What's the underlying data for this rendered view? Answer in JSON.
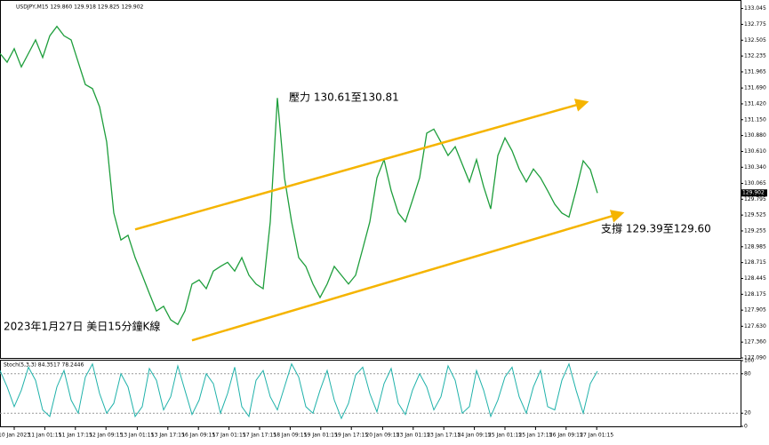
{
  "chart_data": [
    {
      "type": "line",
      "title": "USDJPY,M15  129.860 129.918 129.825 129.902",
      "color": "#1e9e3c",
      "xlim": [
        0,
        104
      ],
      "ylim": [
        127.09,
        133.19
      ],
      "values": [
        132.28,
        132.13,
        132.36,
        132.05,
        132.28,
        132.51,
        132.21,
        132.58,
        132.74,
        132.58,
        132.51,
        132.13,
        131.75,
        131.68,
        131.37,
        130.77,
        129.56,
        129.1,
        129.18,
        128.8,
        128.5,
        128.19,
        127.89,
        127.97,
        127.74,
        127.66,
        127.89,
        128.35,
        128.42,
        128.27,
        128.57,
        128.65,
        128.72,
        128.57,
        128.8,
        128.5,
        128.35,
        128.27,
        129.41,
        131.52,
        130.16,
        129.41,
        128.8,
        128.65,
        128.35,
        128.12,
        128.35,
        128.65,
        128.5,
        128.35,
        128.5,
        128.95,
        129.41,
        130.16,
        130.47,
        129.94,
        129.56,
        129.41,
        129.78,
        130.16,
        130.92,
        130.99,
        130.77,
        130.54,
        130.69,
        130.39,
        130.09,
        130.47,
        130.01,
        129.63,
        130.54,
        130.84,
        130.62,
        130.31,
        130.09,
        130.31,
        130.16,
        129.94,
        129.71,
        129.56,
        129.49,
        129.95,
        130.45,
        130.3,
        129.9
      ],
      "yticks": [
        133.045,
        132.775,
        132.505,
        132.235,
        131.965,
        {
          "value": 131.69,
          "label": "131.690"
        },
        {
          "value": 131.42,
          "label": "131.420"
        },
        {
          "value": 131.15,
          "label": "131.150"
        },
        {
          "value": 130.88,
          "label": "130.880"
        },
        {
          "value": 130.61,
          "label": "130.610"
        },
        {
          "value": 130.34,
          "label": "130.340"
        },
        130.065,
        129.795,
        129.525,
        129.255,
        128.985,
        128.715,
        128.445,
        128.175,
        127.905,
        {
          "value": 127.63,
          "label": "127.630"
        },
        {
          "value": 127.36,
          "label": "127.360"
        },
        {
          "value": 127.09,
          "label": "127.090"
        }
      ],
      "last_price": 129.902,
      "channel_color": "#f5b400",
      "channels": [
        {
          "x": [
            19,
            82.5
          ],
          "values": [
            129.28,
            131.45
          ]
        },
        {
          "x": [
            27,
            87.5
          ],
          "values": [
            127.39,
            129.56
          ]
        }
      ],
      "annotations": [
        "壓力 130.61至130.81",
        "支撐 129.39至129.60",
        "2023年1月27日 美日15分鐘K線"
      ]
    },
    {
      "type": "line",
      "title": "Stoch(5,3,3) 84.3517 78.2446",
      "color": "#20b2aa",
      "xlim": [
        0,
        104
      ],
      "ylim": [
        0,
        100
      ],
      "yticks": [
        0,
        20,
        80,
        100
      ],
      "values": [
        85,
        60,
        30,
        55,
        90,
        70,
        25,
        15,
        60,
        85,
        40,
        20,
        75,
        95,
        50,
        20,
        35,
        80,
        60,
        15,
        30,
        88,
        70,
        25,
        45,
        92,
        55,
        18,
        40,
        80,
        65,
        20,
        50,
        90,
        30,
        15,
        70,
        85,
        45,
        25,
        60,
        95,
        75,
        30,
        20,
        55,
        85,
        40,
        12,
        35,
        78,
        90,
        50,
        22,
        65,
        88,
        35,
        18,
        55,
        80,
        60,
        25,
        45,
        92,
        70,
        20,
        30,
        85,
        55,
        15,
        40,
        75,
        90,
        45,
        20,
        60,
        85,
        30,
        25,
        70,
        95,
        55,
        20,
        65,
        84
      ],
      "xticks": [
        {
          "value": 2,
          "label": "10 Jan 2023"
        },
        {
          "value": 6.3,
          "label": "11 Jan 01:15"
        },
        {
          "value": 10.6,
          "label": "11 Jan 17:15"
        },
        {
          "value": 14.9,
          "label": "12 Jan 09:15"
        },
        {
          "value": 19.3,
          "label": "13 Jan 01:15"
        },
        {
          "value": 23.6,
          "label": "13 Jan 17:15"
        },
        {
          "value": 27.9,
          "label": "16 Jan 09:15"
        },
        {
          "value": 32.2,
          "label": "17 Jan 01:15"
        },
        {
          "value": 36.5,
          "label": "17 Jan 17:15"
        },
        {
          "value": 40.8,
          "label": "18 Jan 09:15"
        },
        {
          "value": 45.1,
          "label": "19 Jan 01:15"
        },
        {
          "value": 49.4,
          "label": "19 Jan 17:15"
        },
        {
          "value": 53.8,
          "label": "20 Jan 09:15"
        },
        {
          "value": 58.1,
          "label": "23 Jan 01:15"
        },
        {
          "value": 62.4,
          "label": "23 Jan 17:15"
        },
        {
          "value": 66.7,
          "label": "24 Jan 09:15"
        },
        {
          "value": 71,
          "label": "25 Jan 01:15"
        },
        {
          "value": 75.3,
          "label": "25 Jan 17:15"
        },
        {
          "value": 79.6,
          "label": "26 Jan 09:15"
        },
        {
          "value": 83.9,
          "label": "27 Jan 01:15"
        }
      ]
    }
  ]
}
